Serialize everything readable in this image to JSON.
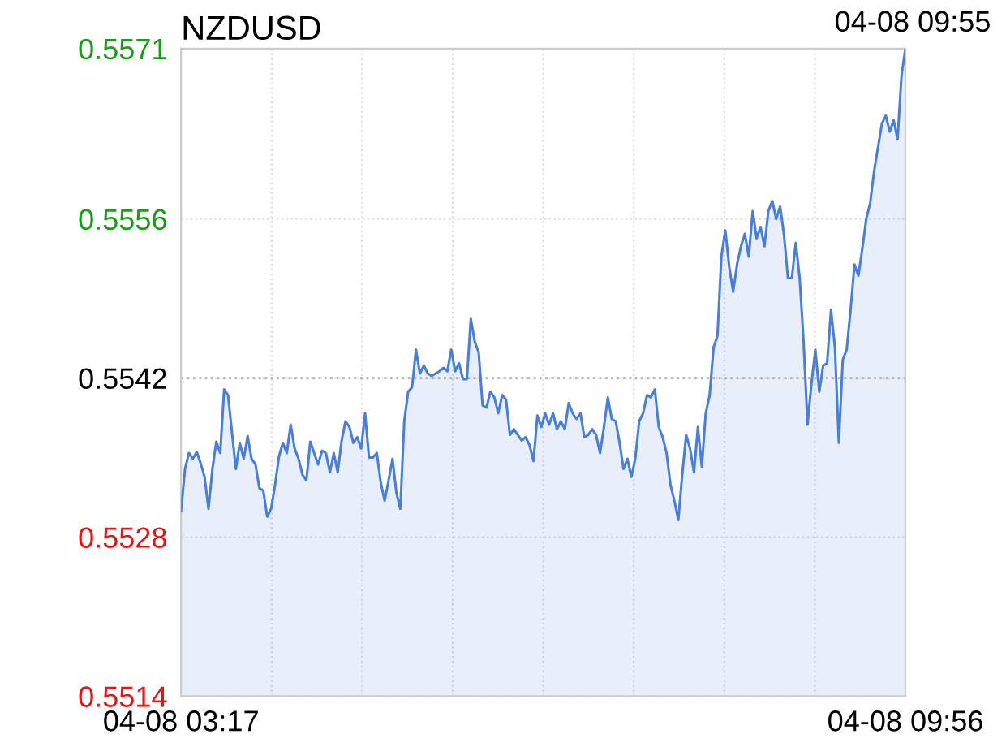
{
  "chart_data": {
    "type": "area",
    "title": "NZDUSD",
    "annotations": [
      "04-08 09:55"
    ],
    "categories": [
      "04-08 03:17",
      null,
      null,
      null,
      null,
      null,
      null,
      null,
      null,
      null,
      null,
      null,
      null,
      null,
      null,
      null,
      null,
      null,
      null,
      null,
      null,
      null,
      null,
      null,
      null,
      null,
      null,
      null,
      null,
      null,
      null,
      null,
      null,
      null,
      null,
      null,
      null,
      null,
      null,
      null,
      null,
      null,
      null,
      null,
      null,
      null,
      null,
      null,
      null,
      null,
      null,
      null,
      null,
      null,
      null,
      null,
      null,
      null,
      null,
      null,
      null,
      null,
      null,
      null,
      null,
      null,
      null,
      null,
      null,
      null,
      null,
      null,
      null,
      null,
      null,
      null,
      null,
      null,
      null,
      null,
      null,
      null,
      null,
      null,
      null,
      null,
      null,
      null,
      null,
      null,
      null,
      null,
      null,
      null,
      null,
      null,
      null,
      null,
      null,
      null,
      null,
      null,
      null,
      null,
      null,
      null,
      null,
      null,
      null,
      null,
      null,
      null,
      null,
      null,
      null,
      null,
      null,
      null,
      null,
      null,
      null,
      null,
      null,
      null,
      null,
      null,
      null,
      null,
      null,
      null,
      null,
      null,
      null,
      null,
      null,
      null,
      null,
      null,
      null,
      null,
      null,
      null,
      null,
      null,
      null,
      null,
      null,
      null,
      null,
      null,
      null,
      null,
      null,
      null,
      null,
      null,
      null,
      null,
      null,
      null,
      null,
      null,
      null,
      null,
      null,
      null,
      null,
      null,
      null,
      null,
      null,
      null,
      null,
      null,
      null,
      null,
      null,
      null,
      null,
      null,
      null,
      null,
      null,
      null,
      null,
      "04-08 09:56"
    ],
    "series": [
      {
        "color": "#4a7fd6",
        "values": [
          0.55303,
          0.5534,
          0.55354,
          0.55349,
          0.55355,
          0.55345,
          0.55333,
          0.55305,
          0.5534,
          0.55364,
          0.55354,
          0.5541,
          0.55405,
          0.55372,
          0.5534,
          0.55363,
          0.55349,
          0.55369,
          0.55349,
          0.55344,
          0.55323,
          0.55321,
          0.55298,
          0.55305,
          0.55326,
          0.55351,
          0.55363,
          0.55354,
          0.55379,
          0.55358,
          0.55349,
          0.55335,
          0.5533,
          0.55364,
          0.55354,
          0.55344,
          0.55356,
          0.55354,
          0.55337,
          0.55354,
          0.55337,
          0.55365,
          0.55382,
          0.55377,
          0.55363,
          0.55368,
          0.55358,
          0.55389,
          0.5535,
          0.5535,
          0.55354,
          0.55328,
          0.55312,
          0.5533,
          0.55349,
          0.55319,
          0.55305,
          0.55382,
          0.55408,
          0.55412,
          0.55445,
          0.55424,
          0.55431,
          0.55424,
          0.55422,
          0.55424,
          0.55426,
          0.55429,
          0.55426,
          0.55445,
          0.55426,
          0.55433,
          0.55419,
          0.55419,
          0.55472,
          0.55452,
          0.55443,
          0.55396,
          0.55394,
          0.55408,
          0.55403,
          0.55389,
          0.55405,
          0.55401,
          0.5537,
          0.55375,
          0.5537,
          0.55365,
          0.55368,
          0.55361,
          0.55347,
          0.55387,
          0.55377,
          0.55389,
          0.55379,
          0.55389,
          0.55375,
          0.55382,
          0.55375,
          0.55398,
          0.55389,
          0.55384,
          0.55389,
          0.55368,
          0.5537,
          0.55375,
          0.5537,
          0.55354,
          0.55377,
          0.55403,
          0.55384,
          0.55382,
          0.55363,
          0.5534,
          0.55349,
          0.55333,
          0.55349,
          0.55382,
          0.55389,
          0.55405,
          0.55403,
          0.5541,
          0.55377,
          0.55368,
          0.55354,
          0.55326,
          0.55312,
          0.55295,
          0.55335,
          0.5537,
          0.55358,
          0.55337,
          0.55377,
          0.55342,
          0.55389,
          0.55405,
          0.55447,
          0.55457,
          0.55527,
          0.5555,
          0.55518,
          0.55496,
          0.5552,
          0.55536,
          0.55547,
          0.55527,
          0.55567,
          0.55543,
          0.55553,
          0.55536,
          0.55567,
          0.55576,
          0.5556,
          0.55571,
          0.55546,
          0.55508,
          0.55508,
          0.55539,
          0.55508,
          0.55452,
          0.55379,
          0.55415,
          0.55445,
          0.55408,
          0.55431,
          0.55433,
          0.5548,
          0.55447,
          0.55363,
          0.55436,
          0.55445,
          0.5548,
          0.5552,
          0.5551,
          0.55534,
          0.5556,
          0.55574,
          0.55602,
          0.55623,
          0.55644,
          0.55651,
          0.55637,
          0.55647,
          0.5563,
          0.55686,
          0.5571
        ]
      }
    ],
    "ylim": [
      0.5514,
      0.5571
    ],
    "yticks": [
      0.5514,
      0.5528,
      0.5542,
      0.5556,
      0.5571
    ],
    "ref_lines": [
      {
        "axis": "y",
        "value": 0.5542,
        "color": "#aaaaaa",
        "line_style": "dotted"
      }
    ],
    "grid": true,
    "legend": false
  }
}
